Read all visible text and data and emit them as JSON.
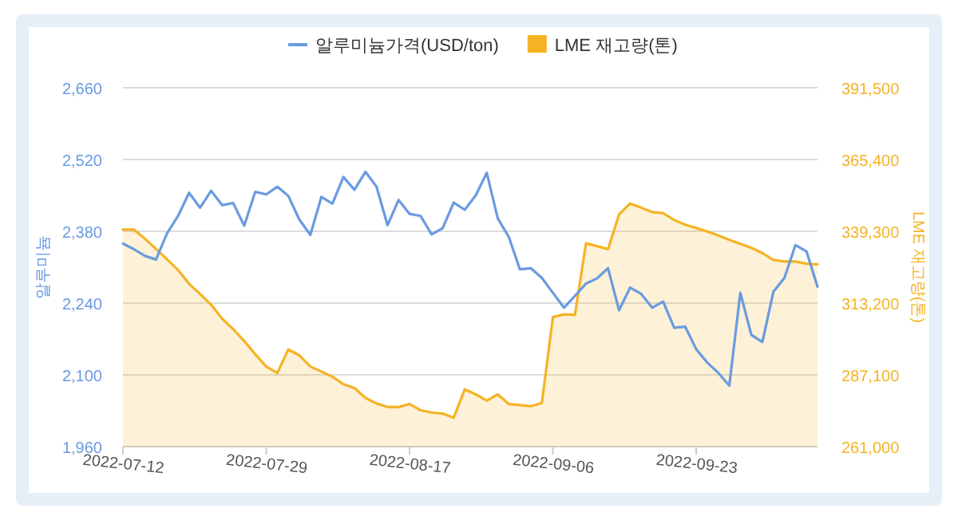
{
  "chart_data": {
    "type": "line",
    "categories": [
      "2022-07-12",
      null,
      null,
      null,
      null,
      null,
      null,
      null,
      null,
      null,
      null,
      null,
      null,
      "2022-07-29",
      null,
      null,
      null,
      null,
      null,
      null,
      null,
      null,
      null,
      null,
      null,
      null,
      "2022-08-17",
      null,
      null,
      null,
      null,
      null,
      null,
      null,
      null,
      null,
      null,
      null,
      null,
      "2022-09-06",
      null,
      null,
      null,
      null,
      null,
      null,
      null,
      null,
      null,
      null,
      null,
      null,
      "2022-09-23",
      null,
      null,
      null,
      null,
      null,
      null,
      null,
      null,
      null,
      null,
      null
    ],
    "series": [
      {
        "name": "알루미늄가격(USD/ton)",
        "color": "#6a9be0",
        "values": [
          2356,
          2345,
          2332,
          2325,
          2376,
          2410,
          2455,
          2426,
          2459,
          2431,
          2435,
          2391,
          2457,
          2452,
          2467,
          2449,
          2403,
          2373,
          2447,
          2434,
          2486,
          2461,
          2496,
          2467,
          2392,
          2441,
          2414,
          2410,
          2374,
          2386,
          2436,
          2422,
          2450,
          2494,
          2405,
          2369,
          2306,
          2308,
          2289,
          2260,
          2231,
          2254,
          2278,
          2288,
          2308,
          2226,
          2270,
          2258,
          2231,
          2243,
          2192,
          2194,
          2150,
          2124,
          2104,
          2079,
          2260,
          2178,
          2164,
          2262,
          2289,
          2353,
          2341,
          2272
        ]
      },
      {
        "name": "LME 재고량(톤)",
        "type": "area",
        "axis": "y2",
        "color": "#f5b324",
        "values": [
          339900,
          339900,
          336600,
          332900,
          329100,
          325200,
          320200,
          316500,
          312600,
          307500,
          303700,
          299400,
          294600,
          290100,
          287800,
          296300,
          294200,
          290100,
          288300,
          286400,
          283700,
          282300,
          278700,
          276700,
          275400,
          275400,
          276500,
          274200,
          273400,
          273000,
          271500,
          281800,
          280000,
          277700,
          280000,
          276500,
          276100,
          275700,
          276900,
          308100,
          309100,
          308900,
          334900,
          333900,
          332800,
          345400,
          349400,
          347900,
          346300,
          345900,
          343400,
          341700,
          340500,
          339200,
          337800,
          336200,
          334700,
          333300,
          331400,
          328900,
          328300,
          328300,
          327500,
          327300
        ]
      }
    ],
    "ylabel": "알루미늄",
    "y2label": "LME 재고량(톤)",
    "ylim": [
      1960,
      2660
    ],
    "yticks": [
      {
        "value": 1960,
        "label": "1,960"
      },
      {
        "value": 2100,
        "label": "2,100"
      },
      {
        "value": 2240,
        "label": "2,240"
      },
      {
        "value": 2380,
        "label": "2,380"
      },
      {
        "value": 2520,
        "label": "2,520"
      },
      {
        "value": 2660,
        "label": "2,660"
      }
    ],
    "y2lim": [
      261000,
      391500
    ],
    "y2ticks": [
      {
        "value": 261000,
        "label": "261,000"
      },
      {
        "value": 287100,
        "label": "287,100"
      },
      {
        "value": 313200,
        "label": "313,200"
      },
      {
        "value": 339300,
        "label": "339,300"
      },
      {
        "value": 365400,
        "label": "365,400"
      },
      {
        "value": 391500,
        "label": "391,500"
      }
    ],
    "grid": "y",
    "legend": "top",
    "marker": "none"
  }
}
